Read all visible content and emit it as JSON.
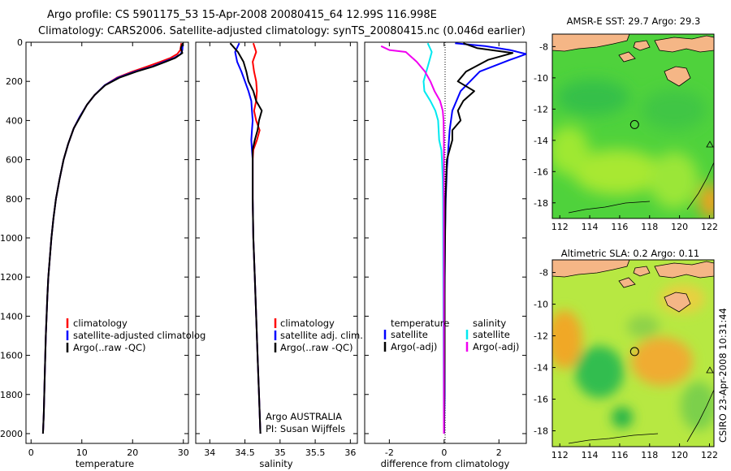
{
  "title": {
    "line1": "Argo profile: CS 5901175_53 15-Apr-2008 20080415_64 12.99S 116.998E",
    "line2": "Climatology: CARS2006. Satellite-adjusted climatology: synTS_20080415.nc (0.046d earlier)"
  },
  "side_label": "CSIRO 23-Apr-2008 10:31:44",
  "colors": {
    "climatology": "#ff0000",
    "satellite": "#0000ff",
    "argo": "#000000",
    "sat_cyan": "#00e8f0",
    "argo_magenta": "#f000f0"
  },
  "panels": {
    "temperature": {
      "xlabel": "temperature",
      "legend": [
        "climatology",
        "satellite-adjusted climatolog",
        "Argo(..raw -QC)"
      ]
    },
    "salinity": {
      "xlabel": "salinity",
      "legend": [
        "climatology",
        "satellite adj. clim.",
        "Argo(..raw -QC)"
      ],
      "footer": [
        "Argo AUSTRALIA",
        "PI: Susan Wijffels"
      ]
    },
    "difference": {
      "xlabel": "difference from climatology",
      "legend_left": {
        "heading": "temperature",
        "items": [
          "satellite",
          "Argo(-adj)"
        ]
      },
      "legend_right": {
        "heading": "salinity",
        "items": [
          "satellite",
          "Argo(-adj)"
        ]
      }
    }
  },
  "maps": {
    "sst": {
      "title": "AMSR-E SST: 29.7 Argo: 29.3"
    },
    "sla": {
      "title": "Altimetric SLA: 0.2 Argo: 0.11"
    },
    "xticks": [
      "112",
      "114",
      "116",
      "118",
      "120",
      "122"
    ],
    "yticks": [
      "-8",
      "-10",
      "-12",
      "-14",
      "-16",
      "-18"
    ],
    "argo_position": {
      "lon": 116.998,
      "lat": -12.99
    }
  },
  "chart_data": [
    {
      "type": "line",
      "panel": "temperature",
      "xlabel": "temperature",
      "ylabel": "",
      "xlim": [
        -1,
        31
      ],
      "ylim": [
        2050,
        0
      ],
      "xticks": [
        0,
        10,
        20,
        30
      ],
      "yticks": [
        0,
        200,
        400,
        600,
        800,
        1000,
        1200,
        1400,
        1600,
        1800,
        2000
      ],
      "series": [
        {
          "name": "climatology",
          "color": "#ff0000",
          "x": [
            29.6,
            29.4,
            28.8,
            27.5,
            25.5,
            22.8,
            20.0,
            17.0,
            14.5,
            12.5,
            11.0,
            9.6,
            8.4,
            7.3,
            6.4,
            5.6,
            4.9,
            4.4,
            4.0,
            3.7,
            3.4,
            3.2,
            2.9,
            2.7,
            2.5,
            2.35
          ],
          "y": [
            5,
            40,
            60,
            80,
            100,
            125,
            150,
            180,
            220,
            270,
            320,
            380,
            440,
            520,
            600,
            700,
            800,
            900,
            1000,
            1100,
            1200,
            1300,
            1500,
            1700,
            1900,
            2000
          ]
        },
        {
          "name": "satellite-adjusted climatolog",
          "color": "#0000ff",
          "x": [
            29.9,
            29.8,
            29.5,
            28.2,
            26.2,
            23.8,
            20.5,
            17.2,
            14.5,
            12.5,
            11.0,
            9.6,
            8.4,
            7.3,
            6.4,
            5.6,
            4.9,
            4.4,
            4.0,
            3.7,
            3.4,
            3.2,
            2.9,
            2.7,
            2.5,
            2.35
          ],
          "y": [
            5,
            40,
            60,
            80,
            100,
            125,
            150,
            180,
            220,
            270,
            320,
            380,
            440,
            520,
            600,
            700,
            800,
            900,
            1000,
            1100,
            1200,
            1300,
            1500,
            1700,
            1900,
            2000
          ]
        },
        {
          "name": "Argo(..raw -QC)",
          "color": "#000000",
          "x": [
            29.9,
            29.5,
            29.8,
            28.4,
            26.5,
            24.0,
            20.8,
            17.5,
            14.6,
            12.5,
            11.0,
            9.7,
            8.4,
            7.3,
            6.4,
            5.6,
            4.9,
            4.4,
            4.0,
            3.7,
            3.4,
            3.2,
            2.9,
            2.7,
            2.5,
            2.35
          ],
          "y": [
            5,
            30,
            55,
            80,
            100,
            125,
            150,
            180,
            220,
            270,
            320,
            380,
            440,
            520,
            600,
            700,
            800,
            900,
            1000,
            1100,
            1200,
            1300,
            1500,
            1700,
            1900,
            2000
          ]
        }
      ]
    },
    {
      "type": "line",
      "panel": "salinity",
      "xlabel": "salinity",
      "ylabel": "",
      "xlim": [
        33.8,
        36.1
      ],
      "ylim": [
        2050,
        0
      ],
      "xticks": [
        34,
        34.5,
        35,
        35.5,
        36
      ],
      "series": [
        {
          "name": "climatology",
          "color": "#ff0000",
          "x": [
            34.62,
            34.66,
            34.61,
            34.63,
            34.66,
            34.67,
            34.66,
            34.63,
            34.66,
            34.71,
            34.67,
            34.62,
            34.61,
            34.61,
            34.61,
            34.62,
            34.64,
            34.66,
            34.68,
            34.7,
            34.72
          ],
          "y": [
            5,
            50,
            100,
            150,
            200,
            250,
            300,
            350,
            400,
            450,
            500,
            550,
            600,
            700,
            800,
            1000,
            1200,
            1400,
            1600,
            1800,
            2000
          ]
        },
        {
          "name": "satellite adj. clim.",
          "color": "#0000ff",
          "x": [
            34.42,
            34.36,
            34.39,
            34.45,
            34.5,
            34.55,
            34.59,
            34.6,
            34.61,
            34.6,
            34.59,
            34.6,
            34.61,
            34.61,
            34.61,
            34.62,
            34.64,
            34.66,
            34.68,
            34.7,
            34.72
          ],
          "y": [
            5,
            50,
            100,
            150,
            200,
            250,
            300,
            350,
            400,
            450,
            500,
            550,
            600,
            700,
            800,
            1000,
            1200,
            1400,
            1600,
            1800,
            2000
          ]
        },
        {
          "name": "Argo(..raw -QC)",
          "color": "#000000",
          "x": [
            34.29,
            34.4,
            34.48,
            34.52,
            34.55,
            34.62,
            34.66,
            34.74,
            34.7,
            34.68,
            34.64,
            34.61,
            34.61,
            34.61,
            34.61,
            34.62,
            34.64,
            34.66,
            34.68,
            34.7,
            34.72
          ],
          "y": [
            5,
            50,
            100,
            150,
            200,
            250,
            300,
            350,
            400,
            450,
            500,
            550,
            600,
            700,
            800,
            1000,
            1200,
            1400,
            1600,
            1800,
            2000
          ]
        }
      ]
    },
    {
      "type": "line",
      "panel": "difference",
      "xlabel": "difference from climatology",
      "ylabel": "",
      "xlim": [
        -2.9,
        3.0
      ],
      "ylim": [
        2050,
        0
      ],
      "xticks": [
        -2,
        0,
        2
      ],
      "series": [
        {
          "name": "satellite",
          "group": "temperature",
          "color": "#0000ff",
          "x": [
            0.4,
            1.5,
            2.4,
            3.0,
            2.4,
            1.3,
            0.6,
            0.3,
            0.2,
            0.15,
            0.1,
            0.06,
            0.03,
            0.02,
            0.02,
            0.02,
            0.0
          ],
          "y": [
            5,
            20,
            40,
            60,
            90,
            150,
            250,
            350,
            450,
            550,
            650,
            800,
            1000,
            1300,
            1600,
            1800,
            2000
          ]
        },
        {
          "name": "Argo(-adj)",
          "group": "temperature",
          "color": "#000000",
          "x": [
            0.7,
            1.2,
            2.5,
            1.6,
            0.8,
            0.5,
            1.1,
            0.7,
            0.5,
            0.6,
            0.3,
            0.3,
            0.1,
            0.05,
            0.02,
            0.02,
            0.0
          ],
          "y": [
            5,
            30,
            55,
            90,
            150,
            200,
            250,
            300,
            350,
            400,
            450,
            500,
            600,
            800,
            1200,
            1600,
            2000
          ]
        },
        {
          "name": "satellite",
          "group": "salinity",
          "color": "#00e8f0",
          "x": [
            -0.6,
            -0.45,
            -0.55,
            -0.65,
            -0.75,
            -0.72,
            -0.5,
            -0.32,
            -0.22,
            -0.18,
            -0.1,
            -0.08,
            -0.05,
            -0.04,
            -0.03,
            -0.02,
            -0.01
          ],
          "y": [
            5,
            50,
            100,
            150,
            200,
            250,
            300,
            350,
            400,
            500,
            550,
            600,
            700,
            800,
            1200,
            1600,
            2000
          ]
        },
        {
          "name": "Argo(-adj)",
          "group": "salinity",
          "color": "#f000f0",
          "x": [
            -2.3,
            -2.0,
            -1.4,
            -1.0,
            -0.7,
            -0.5,
            -0.35,
            -0.15,
            -0.05,
            -0.02,
            -0.01,
            -0.01,
            -0.01,
            -0.01,
            -0.01,
            -0.01,
            -0.01
          ],
          "y": [
            20,
            40,
            50,
            100,
            150,
            200,
            250,
            300,
            350,
            400,
            500,
            600,
            700,
            800,
            1200,
            1600,
            2000
          ]
        }
      ]
    }
  ]
}
